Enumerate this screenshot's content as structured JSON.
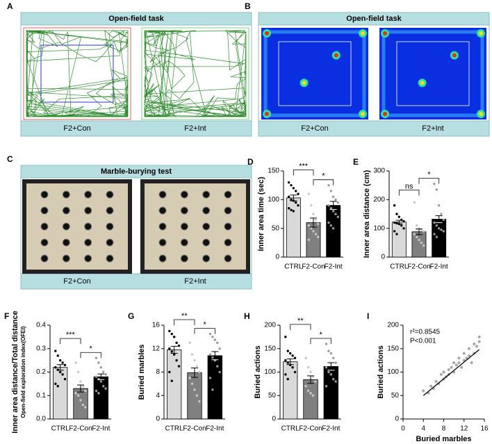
{
  "image_panels": [
    {
      "label": "A",
      "title": "Open-field task",
      "captions": [
        "F2+Con",
        "F2+Int"
      ]
    },
    {
      "label": "B",
      "title": "Open-field task",
      "captions": [
        "F2+Con",
        "F2+Int"
      ]
    },
    {
      "label": "C",
      "title": "Marble-burying test",
      "captions": [
        "F2+Con",
        "F2+Int"
      ]
    }
  ],
  "chart_data": [
    {
      "type": "bar",
      "label": "D",
      "ylabel": "Inner area time (sec)",
      "categories": [
        "CTRL",
        "F2-Con",
        "F2-Int"
      ],
      "values": [
        103,
        60,
        90
      ],
      "errors": [
        5,
        8,
        7
      ],
      "points": [
        [
          130,
          125,
          120,
          115,
          110,
          105,
          100,
          98,
          95,
          90,
          85,
          82,
          80
        ],
        [
          110,
          90,
          75,
          65,
          58,
          55,
          50,
          45,
          40,
          35,
          30
        ],
        [
          125,
          115,
          105,
          100,
          95,
          90,
          85,
          80,
          75,
          70,
          60,
          55,
          50
        ]
      ],
      "colors": [
        "#d9d9d9",
        "#808080",
        "#000000"
      ],
      "point_colors": [
        "#000000",
        "#c8c8c8",
        "#9a9a9a"
      ],
      "ylim": [
        0,
        150
      ],
      "yticks": [
        0,
        50,
        100,
        150
      ],
      "significance": [
        {
          "between": [
            "CTRL",
            "F2-Con"
          ],
          "label": "***"
        },
        {
          "between": [
            "F2-Con",
            "F2-Int"
          ],
          "label": "*"
        }
      ]
    },
    {
      "type": "bar",
      "label": "E",
      "ylabel": "Inner area distance (cm)",
      "categories": [
        "CTRL",
        "F2-Con",
        "F2-Int"
      ],
      "values": [
        122,
        88,
        132
      ],
      "errors": [
        6,
        10,
        12
      ],
      "points": [
        [
          180,
          150,
          140,
          130,
          125,
          120,
          118,
          115,
          110,
          100,
          90,
          80
        ],
        [
          190,
          110,
          100,
          95,
          90,
          80,
          70,
          60,
          50,
          40
        ],
        [
          255,
          235,
          180,
          150,
          130,
          120,
          110,
          100,
          95,
          90,
          80,
          70
        ]
      ],
      "colors": [
        "#d9d9d9",
        "#808080",
        "#000000"
      ],
      "point_colors": [
        "#000000",
        "#c8c8c8",
        "#9a9a9a"
      ],
      "ylim": [
        0,
        300
      ],
      "yticks": [
        0,
        100,
        200,
        300
      ],
      "significance": [
        {
          "between": [
            "CTRL",
            "F2-Con"
          ],
          "label": "ns"
        },
        {
          "between": [
            "F2-Con",
            "F2-Int"
          ],
          "label": "*"
        }
      ]
    },
    {
      "type": "bar",
      "label": "F",
      "ylabel": "Inner area distance/Total distance",
      "ylabel_sub": "Open-field exploration index(OFEI)",
      "categories": [
        "CTRL",
        "F2-Con",
        "F2-Int"
      ],
      "values": [
        0.22,
        0.13,
        0.18
      ],
      "errors": [
        0.012,
        0.015,
        0.012
      ],
      "points": [
        [
          0.29,
          0.27,
          0.25,
          0.24,
          0.23,
          0.22,
          0.21,
          0.2,
          0.19,
          0.17,
          0.15,
          0.14
        ],
        [
          0.24,
          0.2,
          0.16,
          0.14,
          0.12,
          0.11,
          0.1,
          0.08,
          0.06,
          0.05
        ],
        [
          0.26,
          0.24,
          0.22,
          0.2,
          0.19,
          0.18,
          0.17,
          0.16,
          0.14,
          0.13,
          0.12,
          0.11
        ]
      ],
      "colors": [
        "#d9d9d9",
        "#808080",
        "#000000"
      ],
      "point_colors": [
        "#000000",
        "#c8c8c8",
        "#9a9a9a"
      ],
      "ylim": [
        0,
        0.4
      ],
      "yticks": [
        {
          "value": 0,
          "label": "0.0"
        },
        0.1,
        0.2,
        0.3,
        0.4
      ],
      "significance": [
        {
          "between": [
            "CTRL",
            "F2-Con"
          ],
          "label": "***"
        },
        {
          "between": [
            "F2-Con",
            "F2-Int"
          ],
          "label": "*"
        }
      ]
    },
    {
      "type": "bar",
      "label": "G",
      "ylabel": "Buried marbles",
      "categories": [
        "CTRL",
        "F2-Con",
        "F2-Int"
      ],
      "values": [
        11.8,
        7.9,
        10.8
      ],
      "errors": [
        0.6,
        0.8,
        0.7
      ],
      "points": [
        [
          15,
          14.5,
          14,
          13,
          12.5,
          12,
          11.5,
          11,
          10,
          9,
          8,
          6.5
        ],
        [
          13,
          11,
          10,
          9,
          8,
          7,
          6,
          5,
          4,
          3
        ],
        [
          14.5,
          14,
          13.5,
          13,
          12,
          11,
          10.5,
          10,
          9,
          8,
          7,
          5
        ]
      ],
      "colors": [
        "#d9d9d9",
        "#808080",
        "#000000"
      ],
      "point_colors": [
        "#000000",
        "#c8c8c8",
        "#9a9a9a"
      ],
      "ylim": [
        0,
        16
      ],
      "yticks": [
        0,
        4,
        8,
        12,
        16
      ],
      "significance": [
        {
          "between": [
            "CTRL",
            "F2-Con"
          ],
          "label": "**"
        },
        {
          "between": [
            "F2-Con",
            "F2-Int"
          ],
          "label": "*"
        }
      ]
    },
    {
      "type": "bar",
      "label": "H",
      "ylabel": "Buried actions",
      "categories": [
        "CTRL",
        "F2-Con",
        "F2-Int"
      ],
      "values": [
        122,
        84,
        112
      ],
      "errors": [
        6,
        8,
        8
      ],
      "points": [
        [
          175,
          145,
          140,
          135,
          130,
          125,
          120,
          115,
          110,
          100,
          95,
          85
        ],
        [
          130,
          110,
          100,
          90,
          80,
          70,
          60,
          55,
          50
        ],
        [
          160,
          145,
          140,
          130,
          120,
          110,
          100,
          95,
          85,
          80,
          70
        ]
      ],
      "colors": [
        "#d9d9d9",
        "#808080",
        "#000000"
      ],
      "point_colors": [
        "#000000",
        "#c8c8c8",
        "#9a9a9a"
      ],
      "ylim": [
        0,
        200
      ],
      "yticks": [
        0,
        50,
        100,
        150,
        200
      ],
      "significance": [
        {
          "between": [
            "CTRL",
            "F2-Con"
          ],
          "label": "**"
        },
        {
          "between": [
            "F2-Con",
            "F2-Int"
          ],
          "label": "*"
        }
      ]
    },
    {
      "type": "scatter",
      "label": "I",
      "xlabel": "Buried marbles",
      "ylabel": "Buried actions",
      "x": [
        4,
        5,
        5.5,
        6,
        6.5,
        7,
        7.5,
        8,
        8,
        8.5,
        9,
        9,
        9.5,
        10,
        10,
        10.5,
        11,
        11,
        11.5,
        12,
        12,
        12.5,
        13,
        13,
        13.5,
        14,
        14,
        14.5,
        15,
        15
      ],
      "y": [
        60,
        55,
        70,
        65,
        80,
        75,
        95,
        85,
        100,
        90,
        105,
        95,
        110,
        100,
        120,
        115,
        120,
        130,
        110,
        125,
        140,
        130,
        135,
        150,
        120,
        140,
        160,
        155,
        175,
        165
      ],
      "color": "#a6a6a6",
      "fit_line": {
        "x": [
          4,
          15
        ],
        "y": [
          50,
          148
        ],
        "color": "#000000"
      },
      "annotations": [
        "r²=0.8545",
        "P<0.001"
      ],
      "xlim": [
        0,
        16
      ],
      "xticks": [
        0,
        4,
        8,
        12,
        16
      ],
      "ylim": [
        0,
        200
      ],
      "yticks": [
        0,
        50,
        100,
        150,
        200
      ]
    }
  ]
}
